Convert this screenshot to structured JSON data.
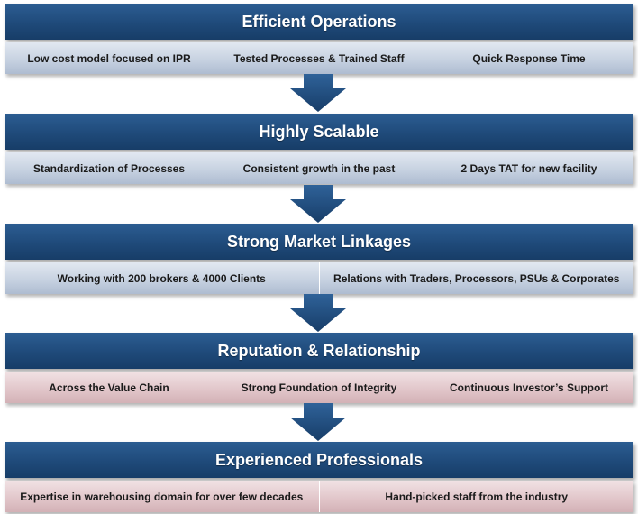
{
  "stages": [
    {
      "title": "Efficient Operations",
      "items": [
        "Low cost model focused on IPR",
        "Tested Processes & Trained Staff",
        "Quick Response Time"
      ]
    },
    {
      "title": "Highly Scalable",
      "items": [
        "Standardization of Processes",
        "Consistent growth in the past",
        "2 Days TAT for new facility"
      ]
    },
    {
      "title": "Strong Market Linkages",
      "items": [
        "Working with 200 brokers & 4000 Clients",
        "Relations with Traders, Processors, PSUs & Corporates"
      ]
    },
    {
      "title": "Reputation & Relationship",
      "items": [
        "Across the Value Chain",
        "Strong Foundation of Integrity",
        "Continuous Investor’s Support"
      ]
    },
    {
      "title": "Experienced Professionals",
      "items": [
        "Expertise in warehousing domain for over few decades",
        "Hand-picked staff from the industry"
      ]
    }
  ],
  "colors": {
    "header": "#1f4a7a",
    "arrow": "#1f4a7a",
    "row_blue": "#c7d2e1",
    "row_rose": "#e2c7cb"
  }
}
